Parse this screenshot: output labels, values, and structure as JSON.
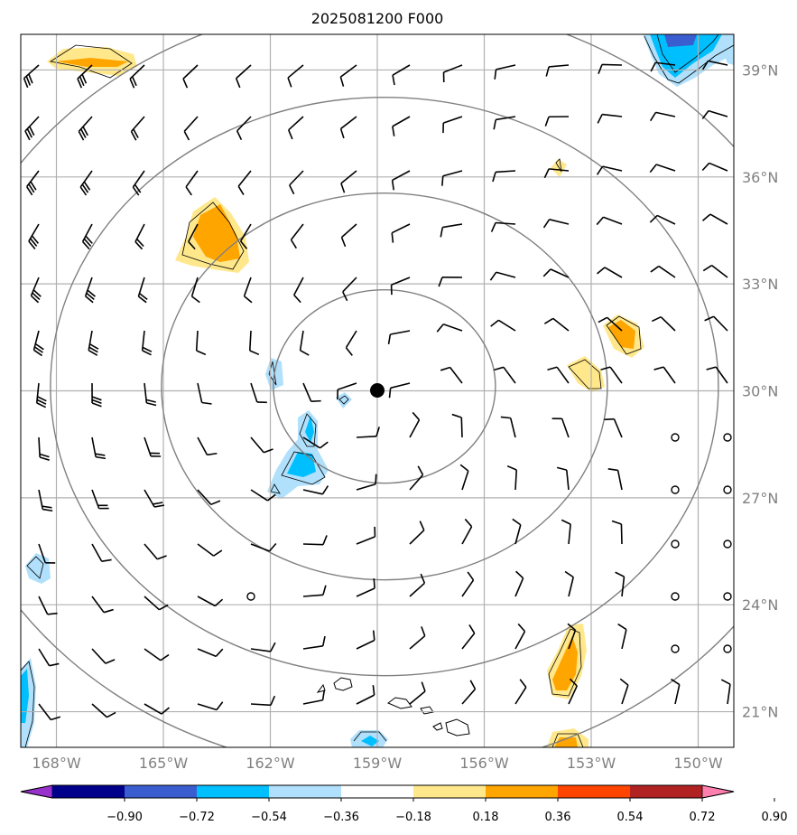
{
  "title": "2025081200 F000",
  "latitude_labels": [
    "39°N",
    "36°N",
    "33°N",
    "30°N",
    "27°N",
    "24°N",
    "21°N"
  ],
  "longitude_labels": [
    "168°W",
    "165°W",
    "162°W",
    "159°W",
    "156°W",
    "153°W",
    "150°W"
  ],
  "colorbar": {
    "labels": [
      "−0.90",
      "−0.72",
      "−0.54",
      "−0.36",
      "−0.18",
      "0.18",
      "0.36",
      "0.54",
      "0.72",
      "0.90"
    ],
    "colors": [
      "#9932cc",
      "#00008b",
      "#3a5ed0",
      "#00bfff",
      "#b0e0fb",
      "#ffffff",
      "#ffe88c",
      "#ffa500",
      "#ff4500",
      "#b22222",
      "#ff7faf"
    ]
  },
  "colors": {
    "grid": "#b0b0b0",
    "range_rings": "#808080",
    "barbs": "#000000",
    "center_marker": "#000000"
  },
  "map": {
    "lon_range": [
      -169,
      -149
    ],
    "lat_range": [
      20,
      40
    ],
    "center": {
      "lon": -158.8,
      "lat": 30.3
    }
  }
}
